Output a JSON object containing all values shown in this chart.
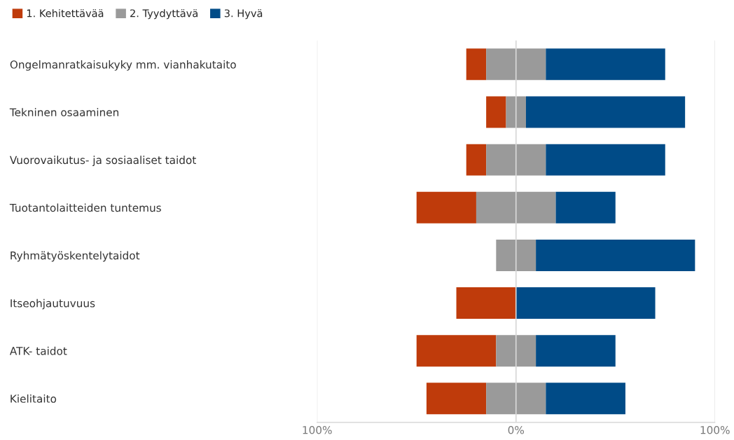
{
  "chart_data": {
    "type": "bar",
    "orientation": "horizontal",
    "categories": [
      "Ongelmanratkaisukyky mm. vianhakutaito",
      "Tekninen osaaminen",
      "Vuorovaikutus- ja sosiaaliset taidot",
      "Tuotantolaitteiden tuntemus",
      "Ryhmätyöskentelytaidot",
      "Itseohjautuvuus",
      "ATK- taidot",
      "Kielitaito"
    ],
    "series": [
      {
        "name": "1. Kehitettävää",
        "color": "#bf3b0b",
        "values": [
          10,
          10,
          10,
          30,
          null,
          30,
          40,
          30
        ],
        "base": [
          -25,
          -15,
          -25,
          -50,
          null,
          -30,
          -50,
          -45
        ]
      },
      {
        "name": "2. Tyydyttävä",
        "color": "#9a9a9a",
        "values": [
          30,
          10,
          30,
          40,
          20,
          null,
          20,
          30
        ],
        "base": [
          -15,
          -5,
          -15,
          -20,
          -10,
          null,
          -10,
          -15
        ]
      },
      {
        "name": "3. Hyvä",
        "color": "#004b87",
        "values": [
          60,
          80,
          60,
          30,
          80,
          70,
          40,
          40
        ],
        "base": [
          15,
          5,
          15,
          20,
          10,
          0,
          10,
          15
        ]
      }
    ],
    "xlim": [
      -100,
      100
    ],
    "xticks": [
      {
        "value": -100,
        "label": "100%"
      },
      {
        "value": 0,
        "label": "0%"
      },
      {
        "value": 100,
        "label": "100%"
      }
    ],
    "grid": "x",
    "legend": "top left"
  }
}
